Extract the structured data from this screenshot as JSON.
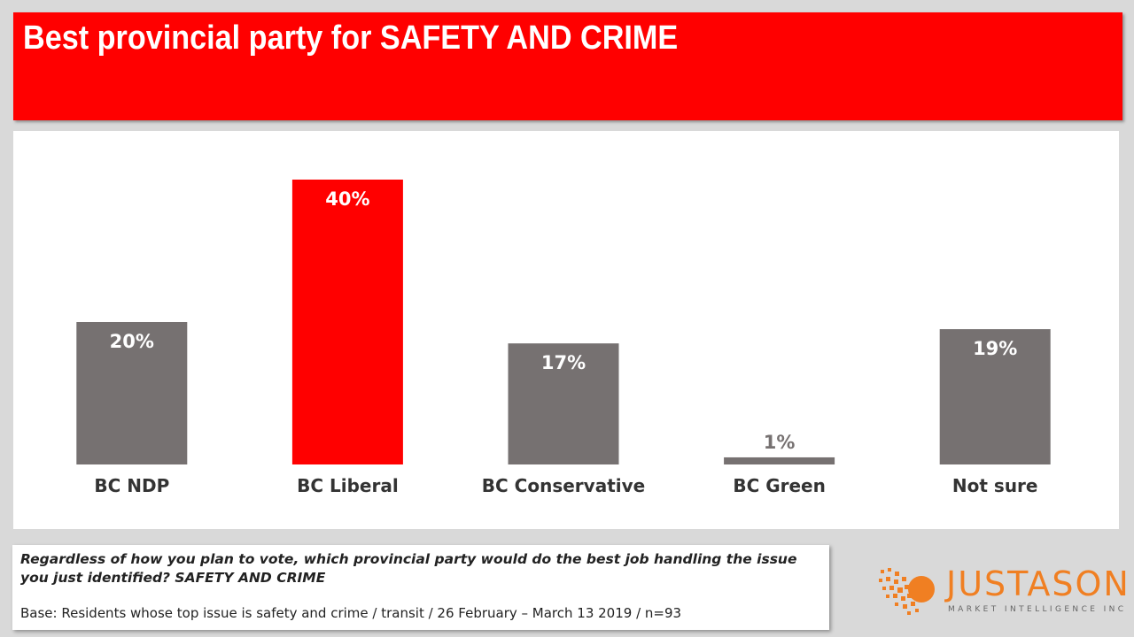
{
  "title": "Best provincial party for SAFETY AND CRIME",
  "chart_data": {
    "type": "bar",
    "categories": [
      "BC NDP",
      "BC Liberal",
      "BC Conservative",
      "BC Green",
      "Not sure"
    ],
    "values": [
      20,
      40,
      17,
      1,
      19
    ],
    "value_labels": [
      "20%",
      "40%",
      "17%",
      "1%",
      "19%"
    ],
    "unit": "%",
    "ylim": [
      0,
      40
    ],
    "grid": false,
    "legend": "none",
    "bar_colors": [
      "#767171",
      "#ff0000",
      "#767171",
      "#767171",
      "#767171"
    ],
    "value_label_colors": [
      "#ffffff",
      "#ffffff",
      "#ffffff",
      "#767171",
      "#ffffff"
    ]
  },
  "question": "Regardless of how you plan to vote, which provincial party would do the best job handling the issue you just identified? SAFETY AND CRIME",
  "base": "Base: Residents whose top issue is safety and crime / transit / 26 February – March 13 2019 / n=93",
  "logo": {
    "name": "JUSTASON",
    "tagline": "MARKET INTELLIGENCE INC",
    "color": "#f07f22"
  },
  "colors": {
    "title_bar": "#ff0000",
    "background": "#d9d9d9"
  }
}
